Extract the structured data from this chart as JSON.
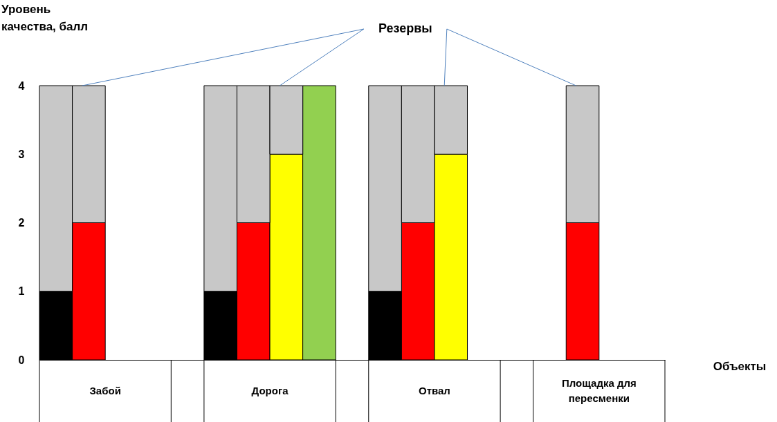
{
  "chart_data": {
    "type": "bar",
    "stacked": true,
    "ylabel": "Уровень качества, балл",
    "xlabel": "Объекты",
    "categories": [
      null,
      null,
      null,
      null,
      null,
      null,
      null,
      null,
      null,
      null,
      null,
      null,
      null,
      null,
      null,
      null,
      null,
      null,
      null
    ],
    "series": [
      {
        "colors": [
          "#000000",
          "#ff0000",
          null,
          null,
          null,
          "#000000",
          "#ff0000",
          "#ffff00",
          "#92d050",
          null,
          "#000000",
          "#ff0000",
          "#ffff00",
          null,
          null,
          null,
          "#ff0000",
          null,
          null
        ],
        "values": [
          1,
          2,
          null,
          null,
          null,
          1,
          2,
          3,
          4,
          null,
          1,
          2,
          3,
          null,
          null,
          null,
          2,
          null,
          null
        ]
      },
      {
        "name": "Резервы",
        "color": "#c8c8c8",
        "values": [
          3,
          2,
          null,
          null,
          null,
          3,
          2,
          1,
          null,
          null,
          3,
          2,
          1,
          null,
          null,
          null,
          2,
          null,
          null
        ]
      }
    ],
    "annotations": [
      "Забой",
      "Дорога",
      "Отвал",
      "Площадка для пересменки"
    ],
    "ylim": [
      0,
      4
    ],
    "yticks": [
      0,
      1,
      2,
      3,
      4
    ],
    "grid": false
  }
}
